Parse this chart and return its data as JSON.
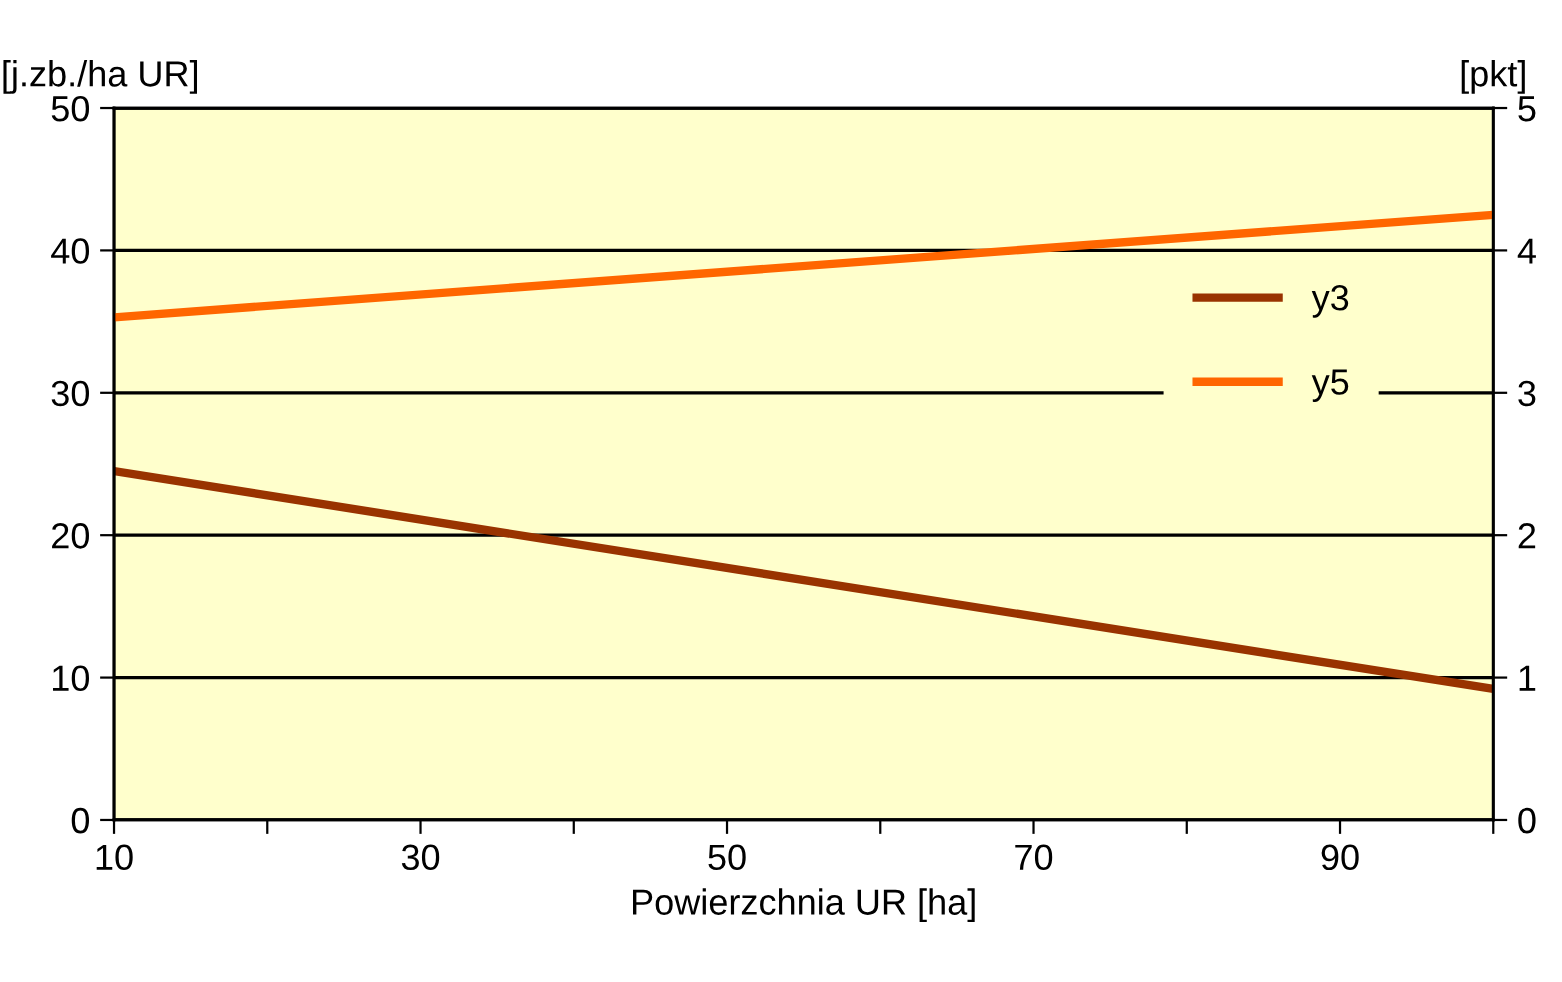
{
  "chart_data": {
    "type": "line",
    "xlabel": "Powierzchnia UR [ha]",
    "ylabel": "[j.zb./ha UR]",
    "y2label": "[pkt]",
    "x": [
      10,
      100
    ],
    "series": [
      {
        "name": "y3",
        "color": "#993300",
        "values": [
          24.5,
          9.2
        ]
      },
      {
        "name": "y5",
        "color": "#ff6600",
        "values": [
          3.53,
          4.25
        ],
        "axis": "y2"
      }
    ],
    "xlim": [
      10,
      100
    ],
    "xticks": [
      10,
      {
        "value": 20,
        "label": null
      },
      30,
      {
        "value": 40,
        "label": null
      },
      50,
      {
        "value": 60,
        "label": null
      },
      70,
      {
        "value": 80,
        "label": null
      },
      90,
      {
        "value": 100,
        "label": null
      }
    ],
    "ylim": [
      0,
      50
    ],
    "yticks": [
      0,
      10,
      20,
      30,
      40,
      50
    ],
    "y2lim": [
      0,
      5
    ],
    "y2ticks": [
      0,
      1,
      2,
      3,
      4,
      5
    ],
    "grid": "y",
    "legend": "right",
    "marker": "none",
    "line_style": "solid"
  }
}
